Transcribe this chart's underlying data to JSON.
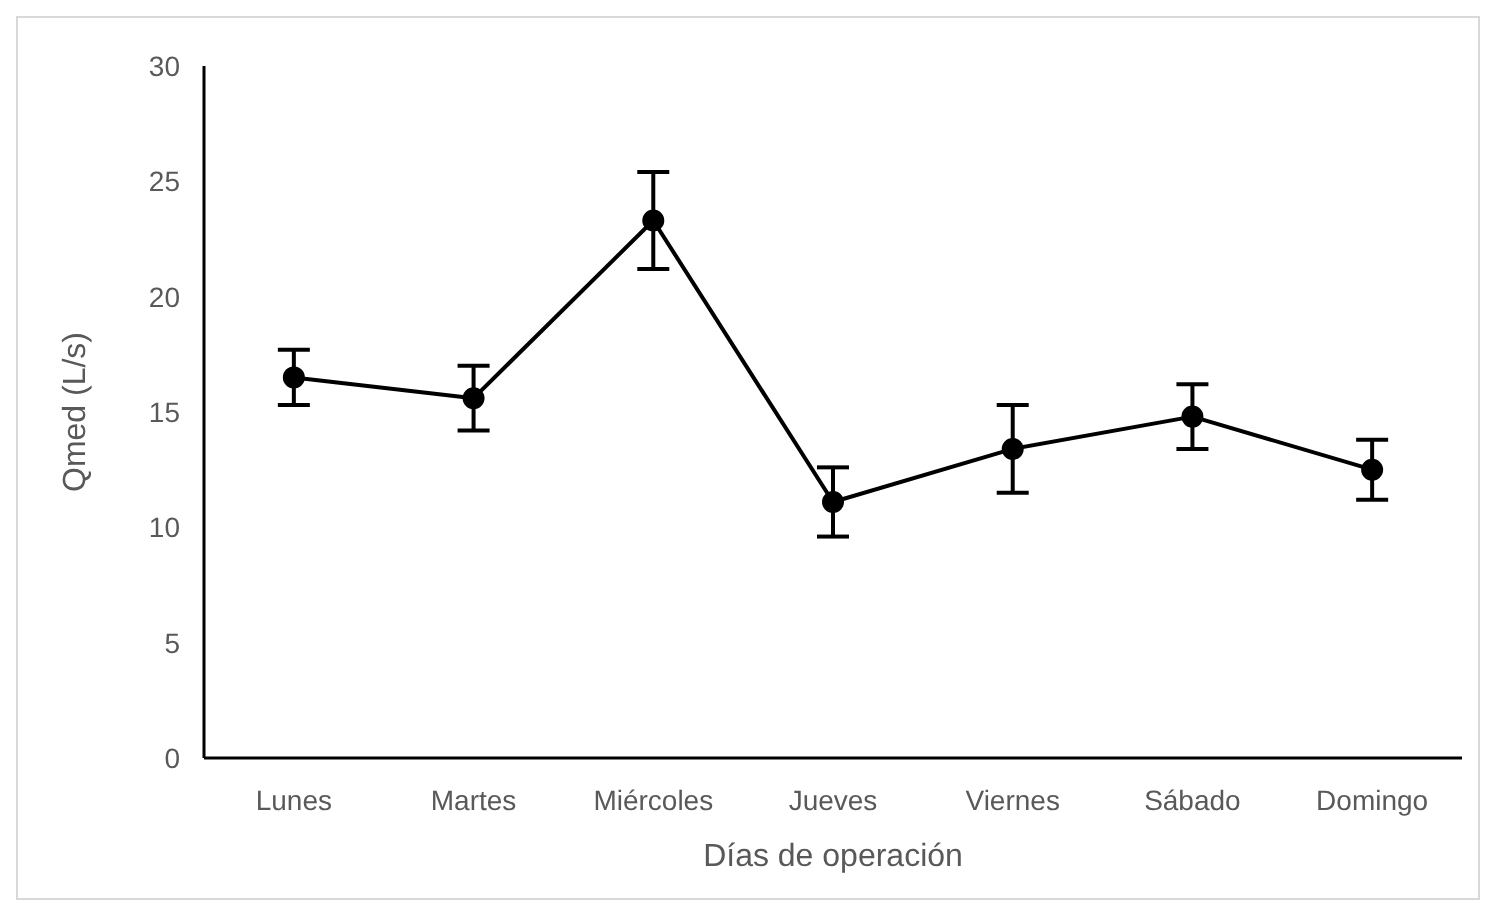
{
  "chart_data": {
    "type": "line",
    "xlabel": "Días de operación",
    "ylabel": "Qmed (L/s)",
    "categories": [
      "Lunes",
      "Martes",
      "Miércoles",
      "Jueves",
      "Viernes",
      "Sábado",
      "Domingo"
    ],
    "series": [
      {
        "color": "#000000",
        "values": [
          16.5,
          15.6,
          23.3,
          11.1,
          13.4,
          14.8,
          12.5
        ],
        "errors": [
          1.2,
          1.4,
          2.1,
          1.5,
          1.9,
          1.4,
          1.3
        ]
      }
    ],
    "ylim": [
      0,
      30
    ],
    "yticks": [
      0,
      5,
      10,
      15,
      20,
      25,
      30
    ],
    "marker": "circle",
    "line_style": "solid",
    "grid": false,
    "legend": false
  }
}
